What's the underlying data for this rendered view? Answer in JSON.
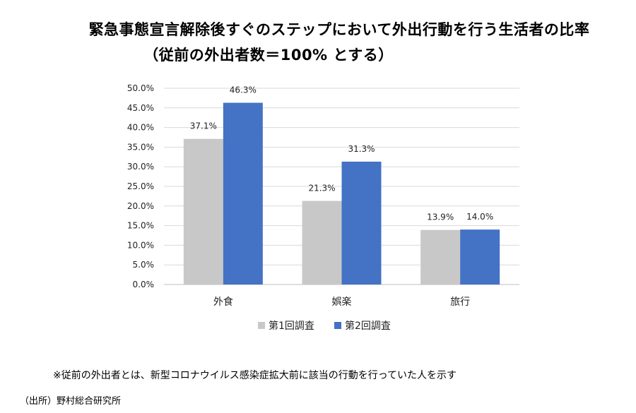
{
  "title_line1": "緊急事態宣言解除後すぐのステップにおいて外出行動を行う生活者の比率",
  "title_line2": "（従前の外出者数＝100% とする）",
  "note": "※従前の外出者とは、新型コロナウイルス感染症拡大前に該当の行動を行っていた人を示す",
  "source": "（出所）野村総合研究所",
  "chart_data": {
    "type": "bar",
    "categories": [
      "外食",
      "娯楽",
      "旅行"
    ],
    "series": [
      {
        "name": "第1回調査",
        "values": [
          37.1,
          21.3,
          13.9
        ],
        "labels": [
          "37.1%",
          "21.3%",
          "13.9%"
        ],
        "color": "#c8c8c8"
      },
      {
        "name": "第2回調査",
        "values": [
          46.3,
          31.3,
          14.0
        ],
        "labels": [
          "46.3%",
          "31.3%",
          "14.0%"
        ],
        "color": "#4472c4"
      }
    ],
    "yticks": [
      "0.0%",
      "5.0%",
      "10.0%",
      "15.0%",
      "20.0%",
      "25.0%",
      "30.0%",
      "35.0%",
      "40.0%",
      "45.0%",
      "50.0%"
    ],
    "ylim": [
      0,
      50
    ],
    "grid": true,
    "legend_position": "bottom"
  }
}
